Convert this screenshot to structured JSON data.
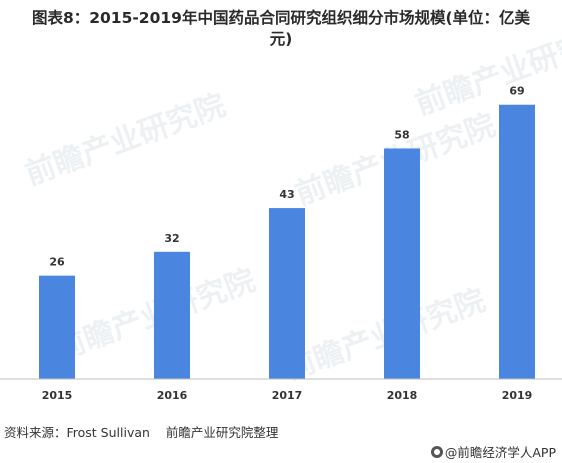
{
  "title": {
    "line1": "图表8：2015-2019年中国药品合同研究组织细分市场规模(单位：亿美",
    "line2": "元)"
  },
  "source": {
    "label": "资料来源：Frost Sullivan",
    "org": "前瞻产业研究院整理"
  },
  "brand": {
    "text": "@前瞻经济学人APP",
    "icon": "qianzhan-logo-icon"
  },
  "watermark": {
    "text": "前瞻产业研究院"
  },
  "colors": {
    "bar": "#4a86e0",
    "axis": "#bfbfbf",
    "label": "#333333"
  },
  "chart_data": {
    "type": "bar",
    "categories": [
      "2015",
      "2016",
      "2017",
      "2018",
      "2019"
    ],
    "values": [
      26,
      32,
      43,
      58,
      69
    ],
    "data_labels": [
      "26",
      "32",
      "43",
      "58",
      "69"
    ],
    "title": "图表8：2015-2019年中国药品合同研究组织细分市场规模(单位：亿美元)",
    "xlabel": "",
    "ylabel": "",
    "ylim": [
      0,
      80
    ],
    "grid": false,
    "legend": "none"
  }
}
